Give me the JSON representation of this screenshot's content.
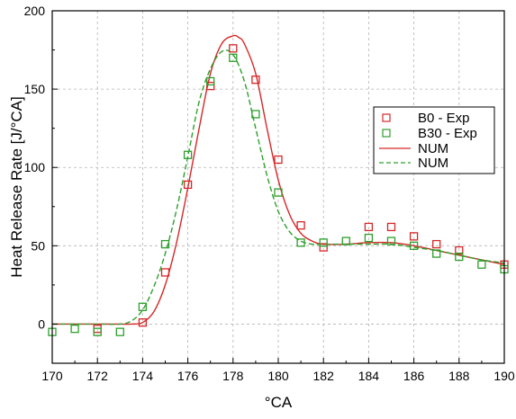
{
  "chart_data": {
    "type": "scatter",
    "title": "",
    "xlabel": "°CA",
    "ylabel": "Heat Release Rate [J/°CA]",
    "xlim": [
      170,
      190
    ],
    "ylim": [
      -25,
      200
    ],
    "x_ticks": [
      "170",
      "172",
      "174",
      "176",
      "178",
      "180",
      "182",
      "184",
      "186",
      "188",
      "190"
    ],
    "y_ticks": [
      "0",
      "50",
      "100",
      "150",
      "200"
    ],
    "grid": true,
    "legend_position": "right",
    "series": [
      {
        "name": "B0 - Exp",
        "kind": "markers",
        "marker": "square",
        "color": "#d62728",
        "x": [
          172,
          174,
          175,
          176,
          177,
          178,
          179,
          180,
          181,
          182,
          184,
          185,
          186,
          187,
          188,
          190
        ],
        "y": [
          -3,
          1,
          33,
          89,
          152,
          176,
          156,
          105,
          63,
          49,
          62,
          62,
          56,
          51,
          47,
          38
        ]
      },
      {
        "name": "B30 - Exp",
        "kind": "markers",
        "marker": "square",
        "color": "#2ca02c",
        "x": [
          170,
          171,
          172,
          173,
          174,
          175,
          176,
          177,
          178,
          179,
          180,
          181,
          182,
          183,
          184,
          185,
          186,
          187,
          188,
          189,
          190
        ],
        "y": [
          -5,
          -3,
          -5,
          -5,
          11,
          51,
          108,
          155,
          170,
          134,
          84,
          52,
          52,
          53,
          55,
          53,
          50,
          45,
          43,
          38,
          35
        ]
      },
      {
        "name": "NUM",
        "kind": "line",
        "dash": "solid",
        "color": "#d62728",
        "x": [
          170,
          172,
          173,
          173.5,
          174,
          174.5,
          175,
          175.5,
          176,
          176.5,
          177,
          177.5,
          178,
          178.25,
          178.5,
          179,
          179.5,
          180,
          180.5,
          181,
          181.5,
          182,
          183,
          184,
          185,
          186,
          187,
          188,
          189,
          190
        ],
        "y": [
          0,
          0,
          0,
          0,
          1,
          8,
          25,
          52,
          87,
          125,
          160,
          179,
          184,
          183,
          179,
          160,
          125,
          92,
          70,
          58,
          53,
          51,
          51,
          52,
          52,
          50,
          47,
          44,
          41,
          38
        ]
      },
      {
        "name": "NUM",
        "kind": "line",
        "dash": "dashed",
        "color": "#2ca02c",
        "x": [
          170,
          172,
          173,
          173.5,
          174,
          174.5,
          175,
          175.5,
          176,
          176.5,
          177,
          177.5,
          178,
          178.5,
          179,
          179.5,
          180,
          180.5,
          181,
          181.5,
          182,
          183,
          184,
          185,
          186,
          187,
          188,
          189,
          190
        ],
        "y": [
          0,
          0,
          0,
          2,
          9,
          24,
          45,
          73,
          107,
          142,
          163,
          174,
          172,
          155,
          125,
          95,
          72,
          59,
          53,
          51,
          51,
          51,
          51,
          51,
          49,
          47,
          44,
          41,
          39
        ]
      }
    ]
  }
}
